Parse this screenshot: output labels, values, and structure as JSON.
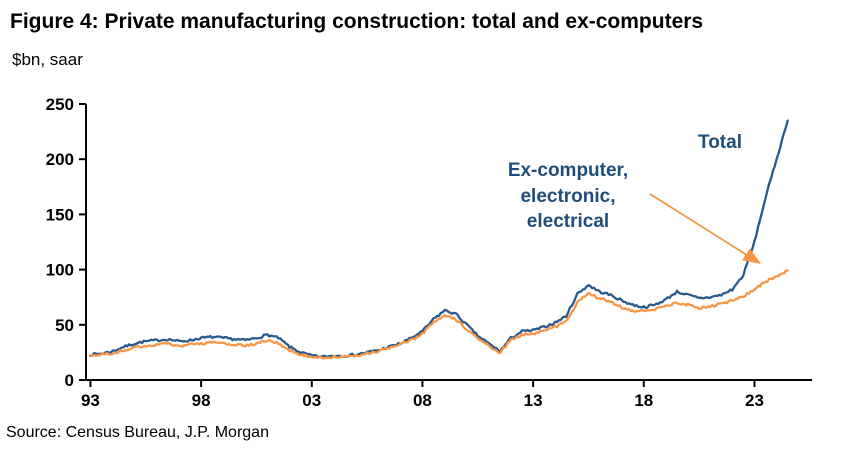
{
  "header": {
    "title": "Figure 4: Private manufacturing construction: total and ex-computers",
    "units": "$bn, saar"
  },
  "footer": {
    "source": "Source: Census Bureau, J.P. Morgan"
  },
  "annotations": {
    "total_label": "Total",
    "ex_label": "Ex-computer,\nelectronic,\nelectrical",
    "arrow_icon": "orange-arrow-pointer"
  },
  "colors": {
    "total_line": "#2a5a8c",
    "ex_line": "#f79646",
    "annotation_text": "#1f4e79",
    "axis": "#000000"
  },
  "chart_data": {
    "type": "line",
    "title": "Figure 4: Private manufacturing construction: total and ex-computers",
    "ylabel": "$bn, saar",
    "xlabel": "",
    "grid": false,
    "legend_position": "inline-annotations",
    "xlim": [
      1992.8,
      2025.6
    ],
    "ylim": [
      0,
      250
    ],
    "yticks": [
      0,
      50,
      100,
      150,
      200,
      250
    ],
    "ytick_labels": [
      "0",
      "50",
      "100",
      "150",
      "200",
      "250"
    ],
    "xtick_values": [
      1993,
      1998,
      2003,
      2008,
      2013,
      2018,
      2023
    ],
    "xtick_labels": [
      "93",
      "98",
      "03",
      "08",
      "13",
      "18",
      "23"
    ],
    "x": [
      1993,
      1993.5,
      1994,
      1994.5,
      1995,
      1995.5,
      1996,
      1996.5,
      1997,
      1997.5,
      1998,
      1998.5,
      1999,
      1999.5,
      2000,
      2000.5,
      2001,
      2001.5,
      2002,
      2002.5,
      2003,
      2003.5,
      2004,
      2004.5,
      2005,
      2005.5,
      2006,
      2006.5,
      2007,
      2007.5,
      2008,
      2008.5,
      2009,
      2009.5,
      2010,
      2010.5,
      2011,
      2011.5,
      2012,
      2012.5,
      2013,
      2013.5,
      2014,
      2014.5,
      2015,
      2015.5,
      2016,
      2016.5,
      2017,
      2017.5,
      2018,
      2018.5,
      2019,
      2019.5,
      2020,
      2020.5,
      2021,
      2021.5,
      2022,
      2022.5,
      2023,
      2023.5,
      2024,
      2024.5
    ],
    "series": [
      {
        "name": "Total",
        "color": "#2a5a8c",
        "values": [
          23,
          24,
          26,
          30,
          33,
          35,
          36,
          37,
          35,
          36,
          38,
          39,
          38,
          37,
          36,
          38,
          41,
          38,
          30,
          25,
          22,
          21,
          22,
          22,
          23,
          25,
          27,
          30,
          33,
          38,
          44,
          55,
          63,
          60,
          50,
          40,
          33,
          26,
          38,
          44,
          45,
          48,
          52,
          58,
          78,
          86,
          80,
          77,
          72,
          68,
          66,
          68,
          73,
          80,
          77,
          74,
          75,
          77,
          82,
          95,
          125,
          165,
          200,
          235
        ]
      },
      {
        "name": "Ex-computer, electronic, electrical",
        "color": "#f79646",
        "values": [
          22,
          23,
          24,
          27,
          29,
          31,
          32,
          33,
          31,
          32,
          33,
          34,
          33,
          32,
          31,
          33,
          36,
          33,
          27,
          23,
          21,
          20,
          21,
          21,
          22,
          24,
          26,
          29,
          32,
          36,
          42,
          52,
          58,
          55,
          46,
          37,
          31,
          25,
          36,
          41,
          42,
          45,
          48,
          53,
          70,
          79,
          74,
          71,
          66,
          63,
          62,
          64,
          67,
          70,
          68,
          65,
          67,
          69,
          72,
          76,
          82,
          89,
          94,
          99
        ]
      }
    ]
  }
}
